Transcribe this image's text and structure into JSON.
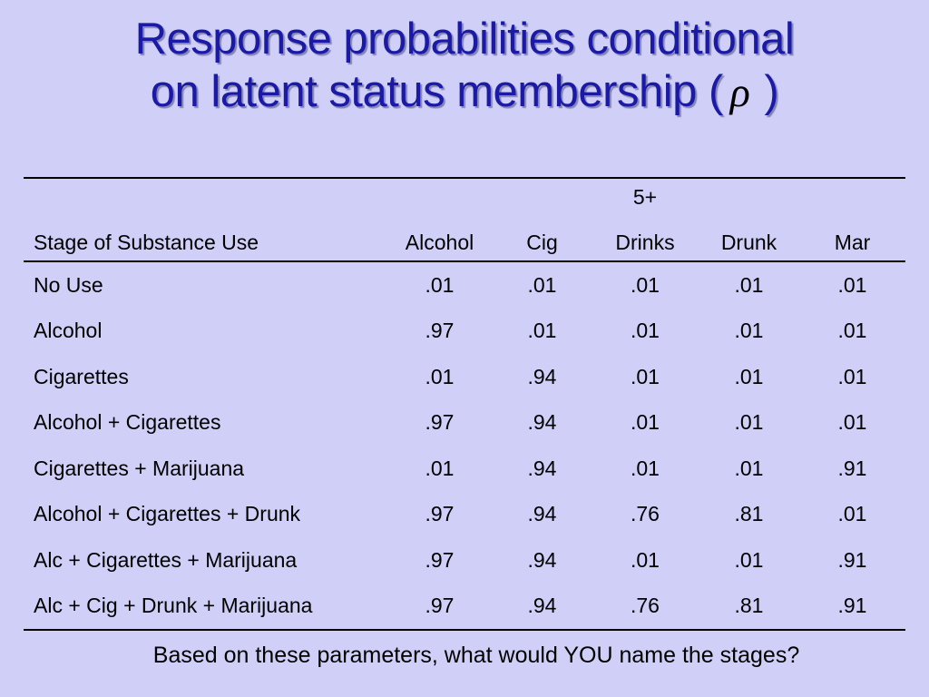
{
  "slide": {
    "title_line1": "Response probabilities conditional",
    "title_line2_pre": "on latent status membership (",
    "title_symbol": "ρ",
    "title_line2_post": ")"
  },
  "table": {
    "header": {
      "stage": "Stage of Substance Use",
      "alcohol": "Alcohol",
      "cig": "Cig",
      "drinks_top": "5+",
      "drinks_bottom": "Drinks",
      "drunk": "Drunk",
      "mar": "Mar"
    },
    "rows": [
      {
        "stage": "No Use",
        "alcohol": ".01",
        "cig": ".01",
        "drinks": ".01",
        "drunk": ".01",
        "mar": ".01"
      },
      {
        "stage": "Alcohol",
        "alcohol": ".97",
        "cig": ".01",
        "drinks": ".01",
        "drunk": ".01",
        "mar": ".01"
      },
      {
        "stage": "Cigarettes",
        "alcohol": ".01",
        "cig": ".94",
        "drinks": ".01",
        "drunk": ".01",
        "mar": ".01"
      },
      {
        "stage": "Alcohol + Cigarettes",
        "alcohol": ".97",
        "cig": ".94",
        "drinks": ".01",
        "drunk": ".01",
        "mar": ".01"
      },
      {
        "stage": "Cigarettes + Marijuana",
        "alcohol": ".01",
        "cig": ".94",
        "drinks": ".01",
        "drunk": ".01",
        "mar": ".91"
      },
      {
        "stage": "Alcohol + Cigarettes + Drunk",
        "alcohol": ".97",
        "cig": ".94",
        "drinks": ".76",
        "drunk": ".81",
        "mar": ".01"
      },
      {
        "stage": "Alc + Cigarettes + Marijuana",
        "alcohol": ".97",
        "cig": ".94",
        "drinks": ".01",
        "drunk": ".01",
        "mar": ".91"
      },
      {
        "stage": "Alc + Cig + Drunk + Marijuana",
        "alcohol": ".97",
        "cig": ".94",
        "drinks": ".76",
        "drunk": ".81",
        "mar": ".91"
      }
    ]
  },
  "footer": {
    "question": "Based on these parameters, what would YOU name the stages?"
  },
  "colors": {
    "background": "#cfcff7",
    "title": "#1a1aa6"
  }
}
